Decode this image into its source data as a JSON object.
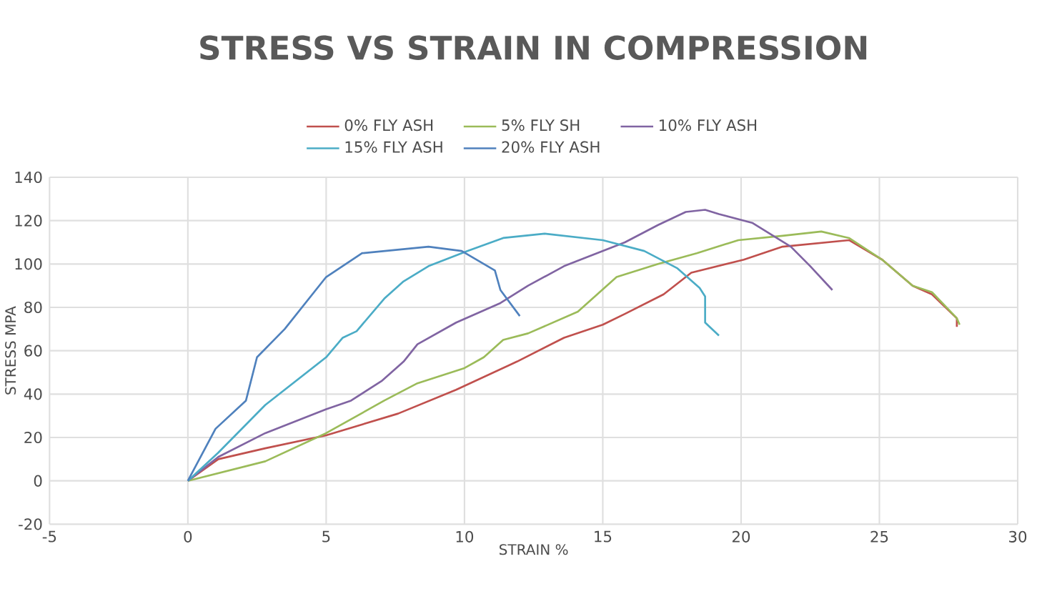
{
  "chart_data": {
    "type": "line",
    "title": "STRESS VS STRAIN IN COMPRESSION",
    "xlabel": "STRAIN %",
    "ylabel": "STRESS MPA",
    "xlim": [
      -5,
      30
    ],
    "xticks": [
      -5,
      0,
      5,
      10,
      15,
      20,
      25,
      30
    ],
    "ylim": [
      -20,
      140
    ],
    "yticks": [
      -20,
      0,
      20,
      40,
      60,
      80,
      100,
      120,
      140
    ],
    "grid": true,
    "legend": "top",
    "marker": "none",
    "line_style": "solid",
    "series": [
      {
        "name": "0% FLY ASH",
        "color": "#c0504d",
        "x": [
          0,
          1.1,
          2.8,
          5,
          7.6,
          9.7,
          11.9,
          13.6,
          15,
          15.8,
          17.2,
          18.2,
          20.1,
          21.5,
          23.9,
          25.1,
          26.2,
          26.9,
          27.8,
          27.8
        ],
        "values": [
          0,
          10,
          15,
          21,
          31,
          42,
          55,
          66,
          72,
          77,
          86,
          96,
          102,
          108,
          111,
          102,
          90,
          86,
          75,
          71
        ]
      },
      {
        "name": "5% FLY SH",
        "color": "#9bbb59",
        "x": [
          0,
          2.8,
          5,
          7.1,
          8.3,
          10,
          10.7,
          11.4,
          12.3,
          14.1,
          15.5,
          17,
          18.4,
          19.9,
          21.5,
          22.9,
          23.9,
          25.1,
          26.2,
          26.9,
          27.8,
          27.9
        ],
        "values": [
          0,
          9,
          22,
          37,
          45,
          52,
          57,
          65,
          68,
          78,
          94,
          100,
          105,
          111,
          113,
          115,
          112,
          102,
          90,
          87,
          75,
          72
        ]
      },
      {
        "name": "10% FLY ASH",
        "color": "#8064a2",
        "x": [
          0,
          1.1,
          2.8,
          5,
          5.9,
          7,
          7.8,
          8.3,
          9.7,
          11.3,
          12.3,
          13.6,
          15.8,
          17,
          18,
          18.7,
          19.2,
          20.4,
          21.8,
          22.5,
          23.3
        ],
        "values": [
          0,
          11,
          22,
          33,
          37,
          46,
          55,
          63,
          73,
          82,
          90,
          99,
          110,
          118,
          124,
          125,
          123,
          119,
          108,
          99,
          88
        ]
      },
      {
        "name": "15% FLY ASH",
        "color": "#4bacc6",
        "x": [
          0,
          1.1,
          2.8,
          5,
          5.6,
          6.1,
          7.1,
          7.8,
          8.7,
          10.1,
          11.4,
          12.9,
          15,
          16.5,
          17.7,
          18.5,
          18.7,
          18.7,
          19.2
        ],
        "values": [
          0,
          13,
          35,
          57,
          66,
          69,
          84,
          92,
          99,
          106,
          112,
          114,
          111,
          106,
          98,
          89,
          85,
          73,
          67
        ]
      },
      {
        "name": "20% FLY ASH",
        "color": "#4f81bd",
        "x": [
          0,
          1,
          2.1,
          2.5,
          3.5,
          5,
          6.3,
          8.7,
          9.9,
          11.1,
          11.3,
          12
        ],
        "values": [
          0,
          24,
          37,
          57,
          70,
          94,
          105,
          108,
          106,
          97,
          88,
          76
        ]
      }
    ]
  }
}
